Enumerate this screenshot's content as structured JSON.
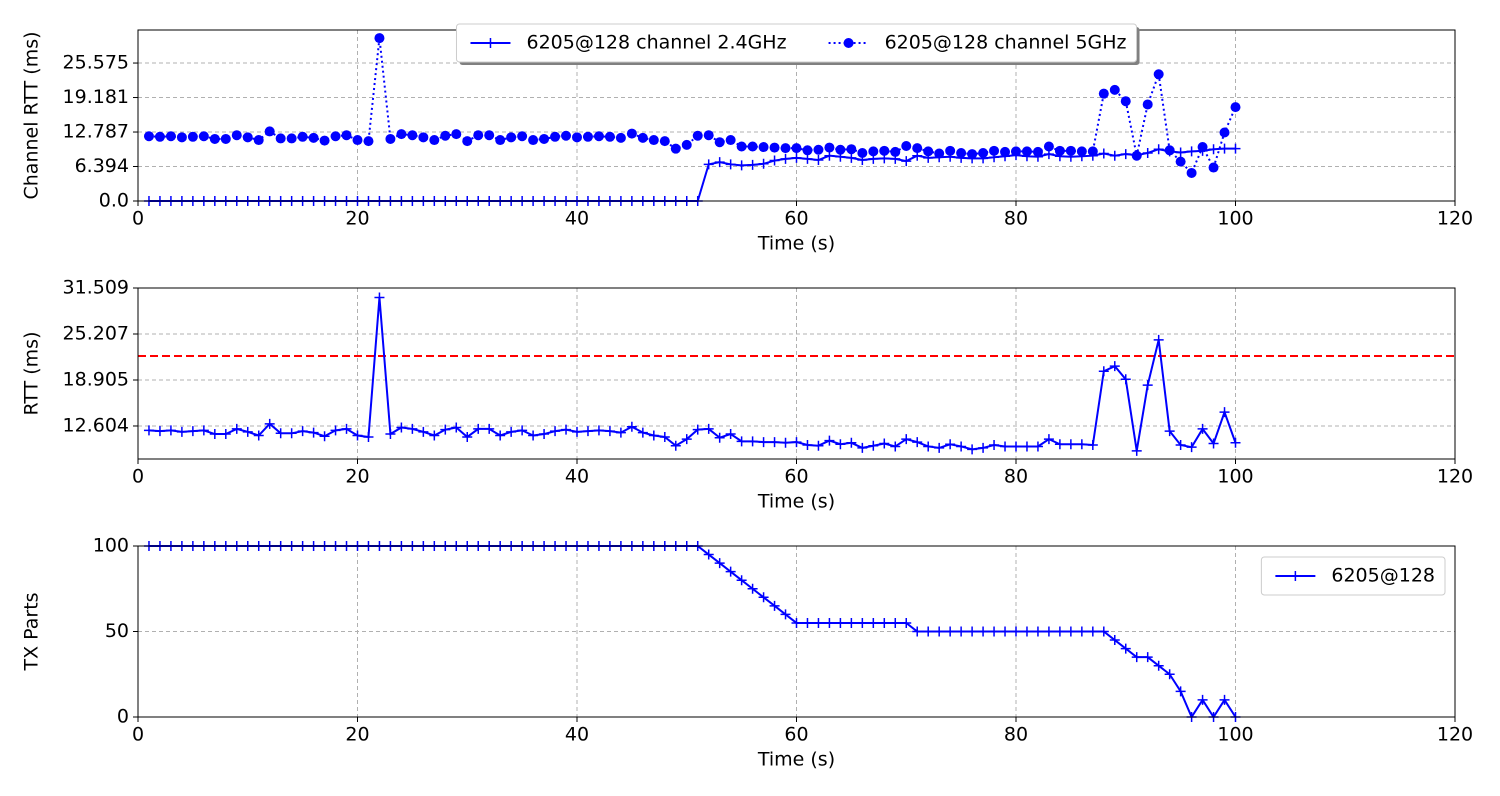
{
  "chart_data": [
    {
      "type": "line",
      "xlabel": "Time (s)",
      "ylabel": "Channel RTT (ms)",
      "xlim": [
        0,
        120
      ],
      "xticks": [
        0,
        20,
        40,
        60,
        80,
        100,
        120
      ],
      "ylim": [
        0,
        31.7
      ],
      "yticks": [
        {
          "value": 0,
          "label": "0.0"
        },
        6.394,
        12.787,
        19.181,
        25.575
      ],
      "grid": true,
      "legend": "upper center",
      "x": [
        1,
        2,
        3,
        4,
        5,
        6,
        7,
        8,
        9,
        10,
        11,
        12,
        13,
        14,
        15,
        16,
        17,
        18,
        19,
        20,
        21,
        22,
        23,
        24,
        25,
        26,
        27,
        28,
        29,
        30,
        31,
        32,
        33,
        34,
        35,
        36,
        37,
        38,
        39,
        40,
        41,
        42,
        43,
        44,
        45,
        46,
        47,
        48,
        49,
        50,
        51,
        52,
        53,
        54,
        55,
        56,
        57,
        58,
        59,
        60,
        61,
        62,
        63,
        64,
        65,
        66,
        67,
        68,
        69,
        70,
        71,
        72,
        73,
        74,
        75,
        76,
        77,
        78,
        79,
        80,
        81,
        82,
        83,
        84,
        85,
        86,
        87,
        88,
        89,
        90,
        91,
        92,
        93,
        94,
        95,
        96,
        97,
        98,
        99,
        100
      ],
      "series": [
        {
          "name": "6205@128 channel 2.4GHz",
          "color": "#0000ff",
          "linestyle": "solid",
          "marker": "+",
          "values": [
            0,
            0,
            0,
            0,
            0,
            0,
            0,
            0,
            0,
            0,
            0,
            0,
            0,
            0,
            0,
            0,
            0,
            0,
            0,
            0,
            0,
            0,
            0,
            0,
            0,
            0,
            0,
            0,
            0,
            0,
            0,
            0,
            0,
            0,
            0,
            0,
            0,
            0,
            0,
            0,
            0,
            0,
            0,
            0,
            0,
            0,
            0,
            0,
            0,
            0,
            0,
            6.8,
            7.2,
            6.8,
            6.6,
            6.7,
            6.9,
            7.5,
            7.8,
            8.0,
            7.8,
            7.6,
            8.4,
            8.2,
            8.0,
            7.6,
            7.8,
            7.9,
            7.8,
            7.4,
            8.4,
            8.0,
            8.1,
            8.2,
            8.0,
            7.9,
            7.9,
            8.1,
            8.3,
            8.5,
            8.3,
            8.2,
            8.7,
            8.3,
            8.2,
            8.3,
            8.4,
            8.8,
            8.4,
            8.7,
            8.5,
            8.9,
            9.6,
            9.2,
            9.0,
            9.2,
            9.3,
            9.6,
            9.7,
            9.7
          ]
        },
        {
          "name": "6205@128 channel 5GHz",
          "color": "#0000ff",
          "linestyle": "dotted",
          "marker": "o",
          "values": [
            12.0,
            11.9,
            12.0,
            11.8,
            11.9,
            12.0,
            11.5,
            11.5,
            12.2,
            11.8,
            11.3,
            12.9,
            11.6,
            11.6,
            11.9,
            11.7,
            11.2,
            12.0,
            12.2,
            11.3,
            11.1,
            30.2,
            11.5,
            12.4,
            12.2,
            11.8,
            11.3,
            12.1,
            12.4,
            11.1,
            12.2,
            12.2,
            11.3,
            11.8,
            12.0,
            11.3,
            11.5,
            11.9,
            12.1,
            11.8,
            11.9,
            12.0,
            11.9,
            11.7,
            12.5,
            11.7,
            11.3,
            11.1,
            9.7,
            10.4,
            12.1,
            12.2,
            10.9,
            11.3,
            10.1,
            10.1,
            10.0,
            9.9,
            9.8,
            9.8,
            9.4,
            9.5,
            9.9,
            9.5,
            9.6,
            8.9,
            9.2,
            9.3,
            9.1,
            10.2,
            9.8,
            9.2,
            8.8,
            9.3,
            8.9,
            8.7,
            8.9,
            9.3,
            9.1,
            9.2,
            9.2,
            9.1,
            10.1,
            9.3,
            9.3,
            9.2,
            9.2,
            19.9,
            20.6,
            18.5,
            8.4,
            17.9,
            23.5,
            9.4,
            7.3,
            5.2,
            10.0,
            6.2,
            12.7,
            17.4
          ]
        }
      ]
    },
    {
      "type": "line",
      "xlabel": "Time (s)",
      "ylabel": "RTT (ms)",
      "xlim": [
        0,
        120
      ],
      "xticks": [
        0,
        20,
        40,
        60,
        80,
        100,
        120
      ],
      "ylim": [
        8.08,
        31.509
      ],
      "yticks": [
        12.604,
        18.905,
        25.207,
        31.509
      ],
      "grid": true,
      "hline": {
        "value": 22.2,
        "color": "#ff0000"
      },
      "x": [
        1,
        2,
        3,
        4,
        5,
        6,
        7,
        8,
        9,
        10,
        11,
        12,
        13,
        14,
        15,
        16,
        17,
        18,
        19,
        20,
        21,
        22,
        23,
        24,
        25,
        26,
        27,
        28,
        29,
        30,
        31,
        32,
        33,
        34,
        35,
        36,
        37,
        38,
        39,
        40,
        41,
        42,
        43,
        44,
        45,
        46,
        47,
        48,
        49,
        50,
        51,
        52,
        53,
        54,
        55,
        56,
        57,
        58,
        59,
        60,
        61,
        62,
        63,
        64,
        65,
        66,
        67,
        68,
        69,
        70,
        71,
        72,
        73,
        74,
        75,
        76,
        77,
        78,
        79,
        80,
        81,
        82,
        83,
        84,
        85,
        86,
        87,
        88,
        89,
        90,
        91,
        92,
        93,
        94,
        95,
        96,
        97,
        98,
        99,
        100
      ],
      "series": [
        {
          "color": "#0000ff",
          "linestyle": "solid",
          "marker": "+",
          "values": [
            12.0,
            11.9,
            12.0,
            11.8,
            11.9,
            12.0,
            11.5,
            11.5,
            12.2,
            11.8,
            11.3,
            12.9,
            11.6,
            11.6,
            11.9,
            11.7,
            11.2,
            12.0,
            12.2,
            11.3,
            11.1,
            30.2,
            11.5,
            12.4,
            12.2,
            11.8,
            11.3,
            12.1,
            12.4,
            11.1,
            12.2,
            12.2,
            11.3,
            11.8,
            12.0,
            11.3,
            11.5,
            11.9,
            12.1,
            11.8,
            11.9,
            12.0,
            11.9,
            11.7,
            12.5,
            11.7,
            11.3,
            11.1,
            9.9,
            10.8,
            12.1,
            12.2,
            11.0,
            11.5,
            10.5,
            10.5,
            10.4,
            10.4,
            10.3,
            10.4,
            10.0,
            9.9,
            10.6,
            10.1,
            10.3,
            9.6,
            9.9,
            10.2,
            9.8,
            10.8,
            10.4,
            9.8,
            9.6,
            10.1,
            9.8,
            9.4,
            9.6,
            10.0,
            9.8,
            9.8,
            9.8,
            9.8,
            10.8,
            10.1,
            10.1,
            10.1,
            10.0,
            20.1,
            20.8,
            19.0,
            9.2,
            18.2,
            24.4,
            11.9,
            10.0,
            9.7,
            12.2,
            10.2,
            14.5,
            10.3
          ]
        }
      ]
    },
    {
      "type": "line",
      "xlabel": "Time (s)",
      "ylabel": "TX Parts",
      "xlim": [
        0,
        120
      ],
      "xticks": [
        0,
        20,
        40,
        60,
        80,
        100,
        120
      ],
      "ylim": [
        0,
        100
      ],
      "yticks": [
        0,
        50,
        100
      ],
      "grid": true,
      "legend": "upper right",
      "x": [
        1,
        2,
        3,
        4,
        5,
        6,
        7,
        8,
        9,
        10,
        11,
        12,
        13,
        14,
        15,
        16,
        17,
        18,
        19,
        20,
        21,
        22,
        23,
        24,
        25,
        26,
        27,
        28,
        29,
        30,
        31,
        32,
        33,
        34,
        35,
        36,
        37,
        38,
        39,
        40,
        41,
        42,
        43,
        44,
        45,
        46,
        47,
        48,
        49,
        50,
        51,
        52,
        53,
        54,
        55,
        56,
        57,
        58,
        59,
        60,
        61,
        62,
        63,
        64,
        65,
        66,
        67,
        68,
        69,
        70,
        71,
        72,
        73,
        74,
        75,
        76,
        77,
        78,
        79,
        80,
        81,
        82,
        83,
        84,
        85,
        86,
        87,
        88,
        89,
        90,
        91,
        92,
        93,
        94,
        95,
        96,
        97,
        98,
        99,
        100
      ],
      "series": [
        {
          "name": "6205@128",
          "color": "#0000ff",
          "linestyle": "solid",
          "marker": "+",
          "values": [
            100,
            100,
            100,
            100,
            100,
            100,
            100,
            100,
            100,
            100,
            100,
            100,
            100,
            100,
            100,
            100,
            100,
            100,
            100,
            100,
            100,
            100,
            100,
            100,
            100,
            100,
            100,
            100,
            100,
            100,
            100,
            100,
            100,
            100,
            100,
            100,
            100,
            100,
            100,
            100,
            100,
            100,
            100,
            100,
            100,
            100,
            100,
            100,
            100,
            100,
            100,
            95,
            90,
            85,
            80,
            75,
            70,
            65,
            60,
            55,
            55,
            55,
            55,
            55,
            55,
            55,
            55,
            55,
            55,
            55,
            50,
            50,
            50,
            50,
            50,
            50,
            50,
            50,
            50,
            50,
            50,
            50,
            50,
            50,
            50,
            50,
            50,
            50,
            45,
            40,
            35,
            35,
            30,
            25,
            15,
            0,
            10,
            0,
            10,
            0
          ]
        }
      ]
    }
  ]
}
